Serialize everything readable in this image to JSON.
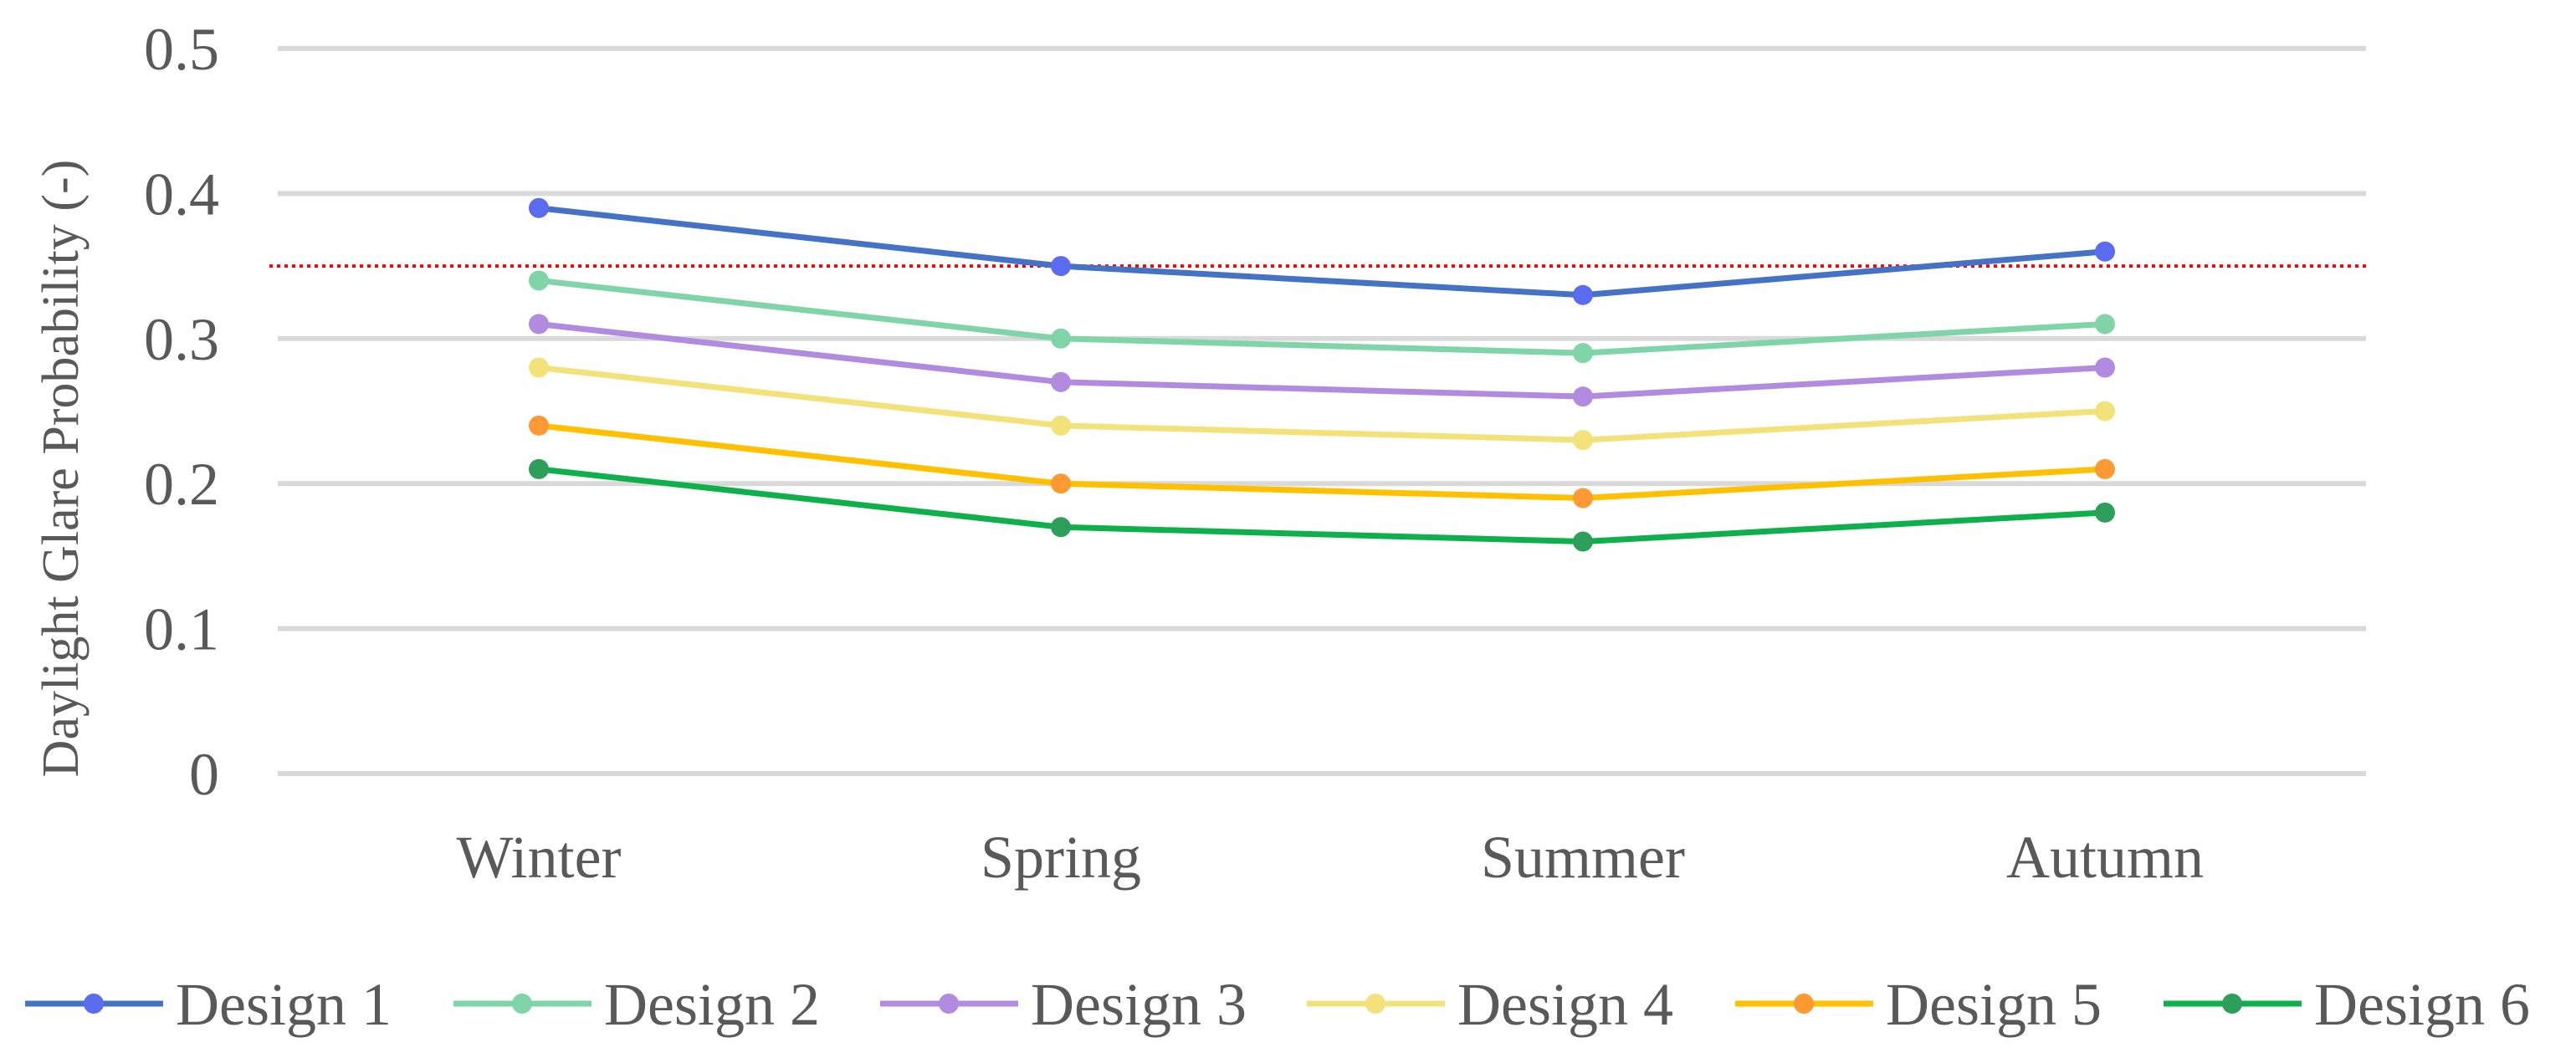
{
  "chart_data": {
    "type": "line",
    "title": "",
    "xlabel": "",
    "ylabel": "Daylight Glare Probability (-)",
    "ylim": [
      0,
      0.5
    ],
    "yticks": [
      "0",
      "0.1",
      "0.2",
      "0.3",
      "0.4",
      "0.5"
    ],
    "grid": true,
    "legend_position": "bottom",
    "categories": [
      "Winter",
      "Spring",
      "Summer",
      "Autumn"
    ],
    "threshold": {
      "value": 0.35,
      "color": "#ff0000",
      "style": "dotted"
    },
    "series": [
      {
        "name": "Design 1",
        "values": [
          0.39,
          0.35,
          0.33,
          0.36
        ],
        "line_color": "#4472c4",
        "marker_color": "#5b6cf0"
      },
      {
        "name": "Design 2",
        "values": [
          0.34,
          0.3,
          0.29,
          0.31
        ],
        "line_color": "#7fd4a8",
        "marker_color": "#7fd4a8"
      },
      {
        "name": "Design 3",
        "values": [
          0.31,
          0.27,
          0.26,
          0.28
        ],
        "line_color": "#b18be0",
        "marker_color": "#b18be0"
      },
      {
        "name": "Design 4",
        "values": [
          0.28,
          0.24,
          0.23,
          0.25
        ],
        "line_color": "#f3e27a",
        "marker_color": "#f3e27a"
      },
      {
        "name": "Design 5",
        "values": [
          0.24,
          0.2,
          0.19,
          0.21
        ],
        "line_color": "#ffc000",
        "marker_color": "#ff9933"
      },
      {
        "name": "Design 6",
        "values": [
          0.21,
          0.17,
          0.16,
          0.18
        ],
        "line_color": "#0db04b",
        "marker_color": "#2e9e5b"
      }
    ]
  }
}
